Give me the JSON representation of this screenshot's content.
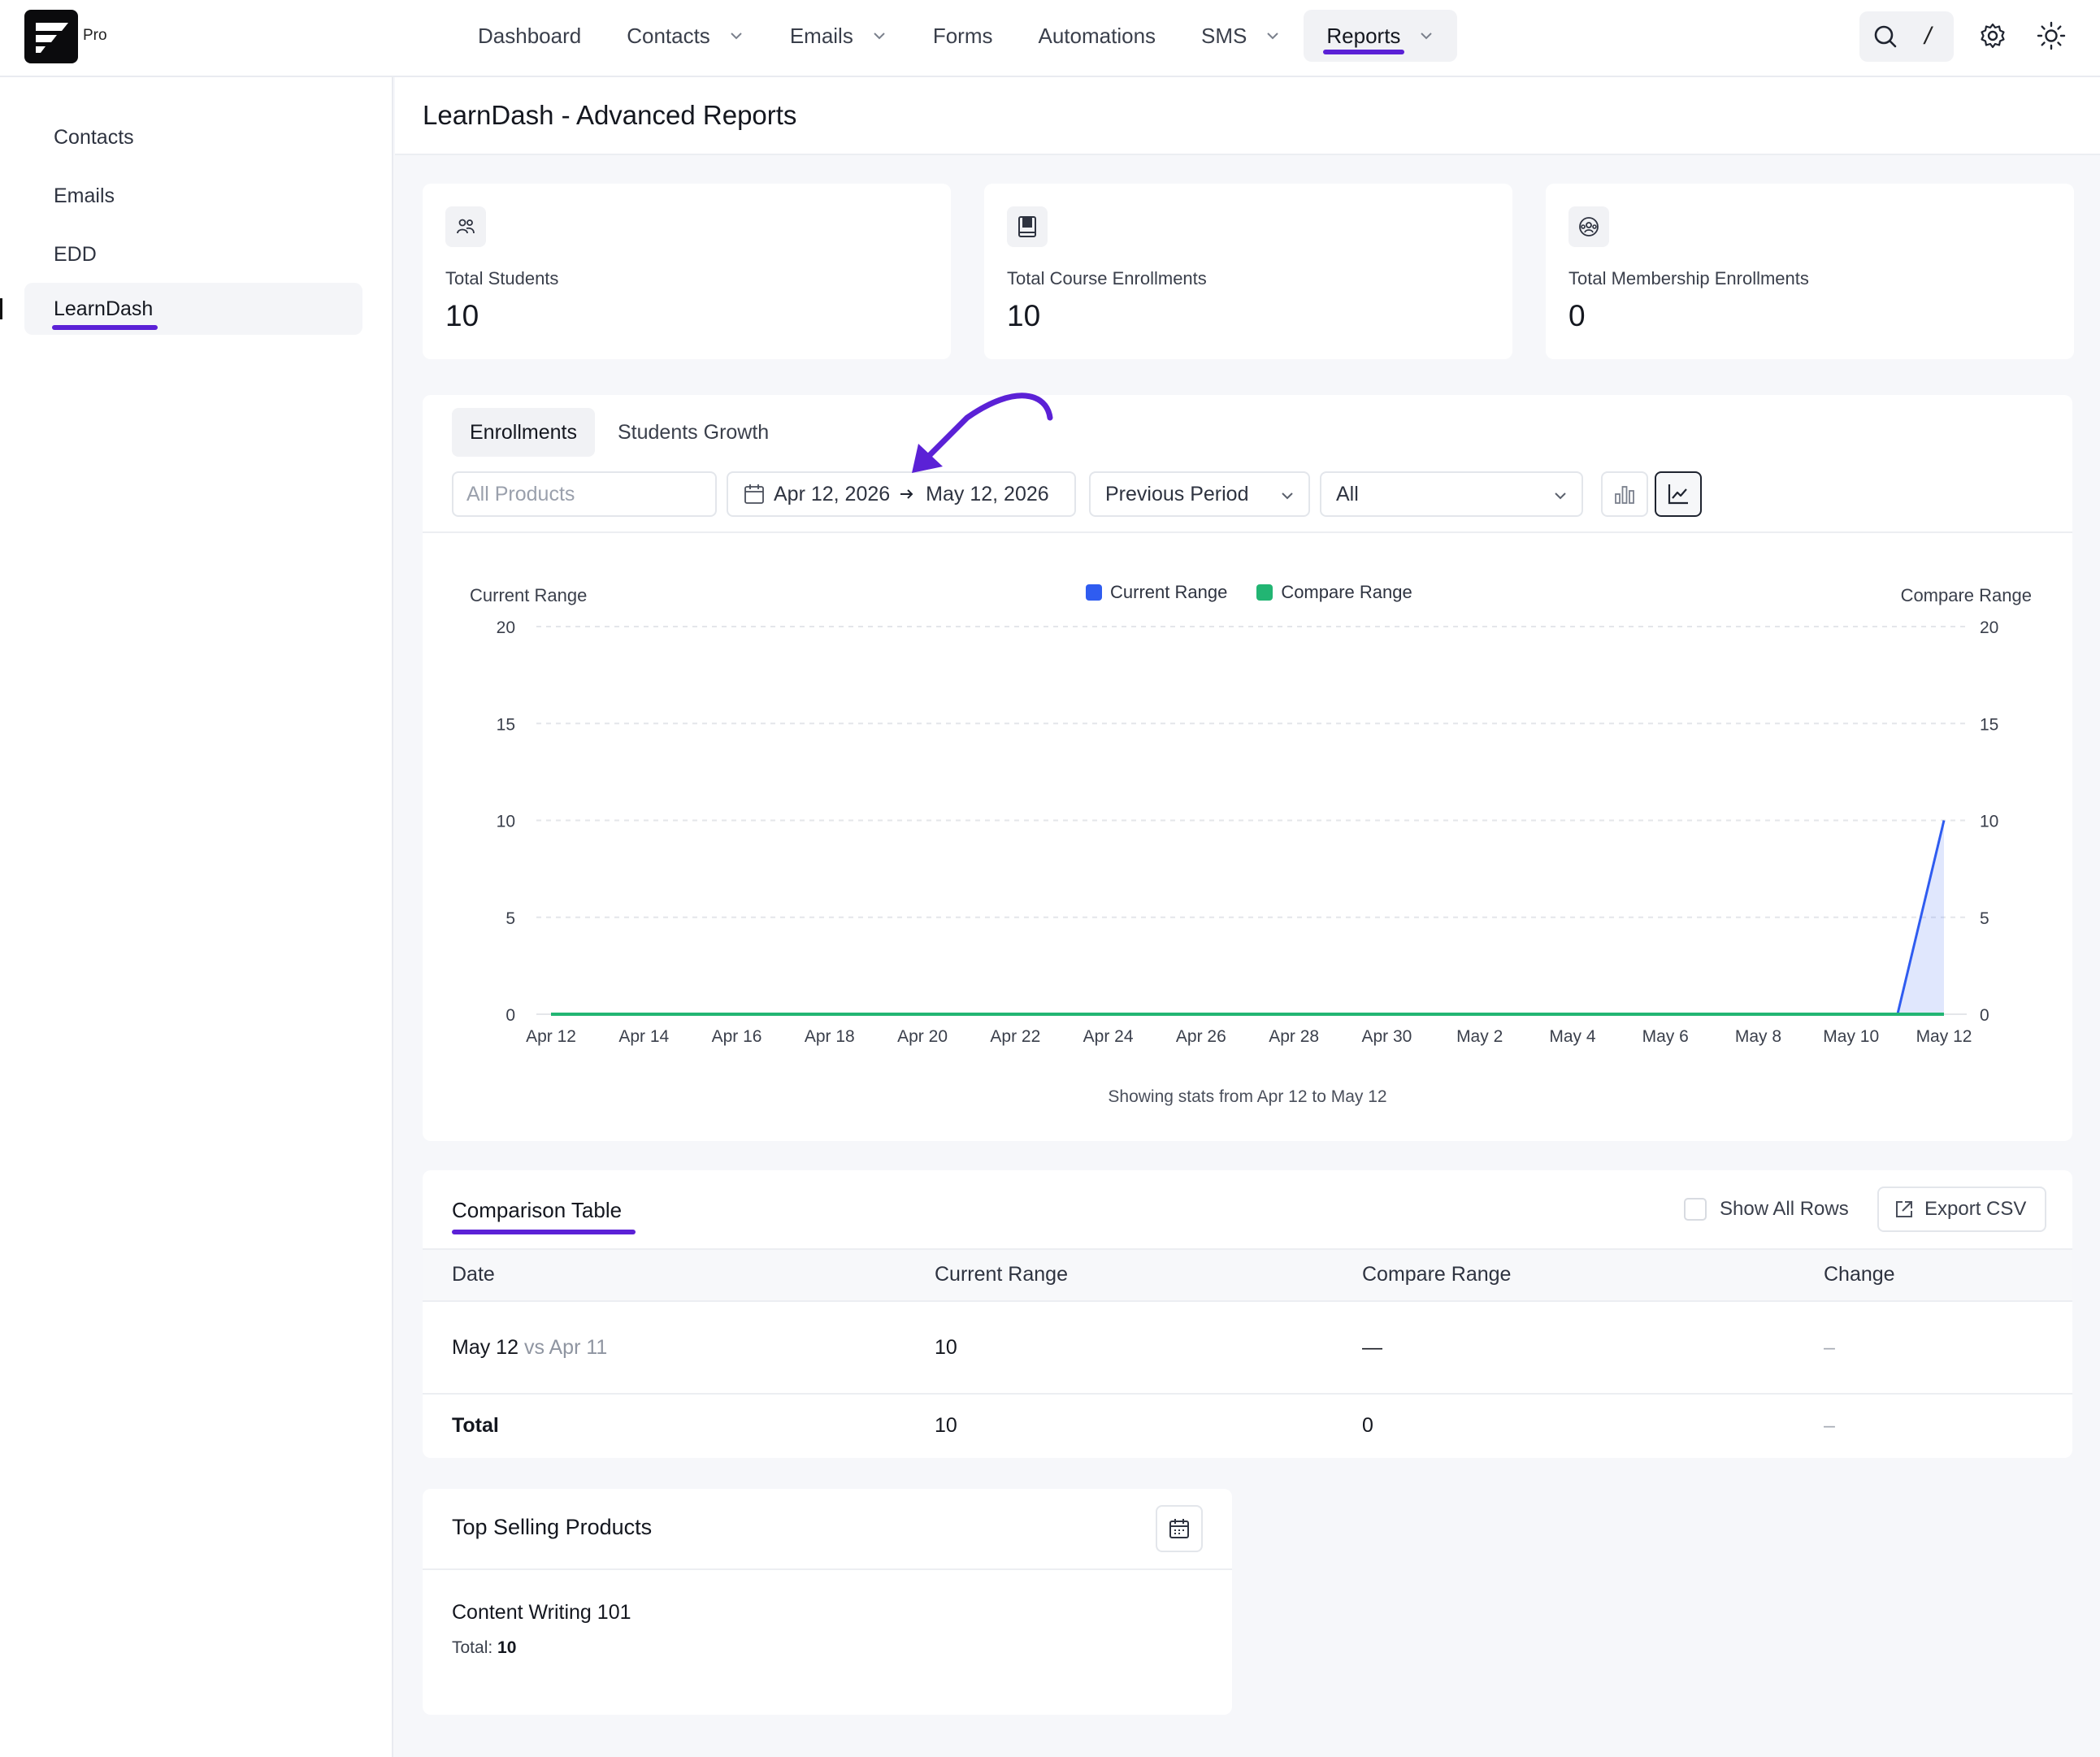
{
  "app": {
    "badge": "Pro"
  },
  "nav": {
    "items": [
      {
        "label": "Dashboard",
        "dropdown": false,
        "active": false
      },
      {
        "label": "Contacts",
        "dropdown": true,
        "active": false
      },
      {
        "label": "Emails",
        "dropdown": true,
        "active": false
      },
      {
        "label": "Forms",
        "dropdown": false,
        "active": false
      },
      {
        "label": "Automations",
        "dropdown": false,
        "active": false
      },
      {
        "label": "SMS",
        "dropdown": true,
        "active": false
      },
      {
        "label": "Reports",
        "dropdown": true,
        "active": true
      }
    ],
    "search_shortcut": "/"
  },
  "sidebar": {
    "items": [
      {
        "label": "Contacts",
        "active": false
      },
      {
        "label": "Emails",
        "active": false
      },
      {
        "label": "EDD",
        "active": false
      },
      {
        "label": "LearnDash",
        "active": true
      }
    ]
  },
  "page": {
    "title": "LearnDash - Advanced Reports"
  },
  "stats": [
    {
      "label": "Total Students",
      "value": "10",
      "icon": "users-icon"
    },
    {
      "label": "Total Course Enrollments",
      "value": "10",
      "icon": "book-icon"
    },
    {
      "label": "Total Membership Enrollments",
      "value": "0",
      "icon": "membership-icon"
    }
  ],
  "report": {
    "tabs": [
      {
        "label": "Enrollments",
        "active": true
      },
      {
        "label": "Students Growth",
        "active": false
      }
    ],
    "filters": {
      "products_placeholder": "All Products",
      "date_start": "Apr 12, 2026",
      "date_end": "May 12, 2026",
      "compare": "Previous Period",
      "scope": "All"
    },
    "chart_view": "line",
    "footnote": "Showing stats from Apr 12 to May 12"
  },
  "chart_data": {
    "type": "area",
    "title": "",
    "ylabel": "Current Range",
    "ylabel_right": "Compare Range",
    "ylim": [
      0,
      20
    ],
    "yticks": [
      0,
      5,
      10,
      15,
      20
    ],
    "legend_position": "top-center",
    "grid": true,
    "x_tick_labels": [
      "Apr 12",
      "Apr 14",
      "Apr 16",
      "Apr 18",
      "Apr 20",
      "Apr 22",
      "Apr 24",
      "Apr 26",
      "Apr 28",
      "Apr 30",
      "May 2",
      "May 4",
      "May 6",
      "May 8",
      "May 10",
      "May 12"
    ],
    "x": [
      "Apr 12",
      "Apr 13",
      "Apr 14",
      "Apr 15",
      "Apr 16",
      "Apr 17",
      "Apr 18",
      "Apr 19",
      "Apr 20",
      "Apr 21",
      "Apr 22",
      "Apr 23",
      "Apr 24",
      "Apr 25",
      "Apr 26",
      "Apr 27",
      "Apr 28",
      "Apr 29",
      "Apr 30",
      "May 1",
      "May 2",
      "May 3",
      "May 4",
      "May 5",
      "May 6",
      "May 7",
      "May 8",
      "May 9",
      "May 10",
      "May 11",
      "May 12"
    ],
    "series": [
      {
        "name": "Current Range",
        "color": "#2f5cf0",
        "values": [
          0,
          0,
          0,
          0,
          0,
          0,
          0,
          0,
          0,
          0,
          0,
          0,
          0,
          0,
          0,
          0,
          0,
          0,
          0,
          0,
          0,
          0,
          0,
          0,
          0,
          0,
          0,
          0,
          0,
          0,
          10
        ]
      },
      {
        "name": "Compare Range",
        "color": "#22b573",
        "values": [
          0,
          0,
          0,
          0,
          0,
          0,
          0,
          0,
          0,
          0,
          0,
          0,
          0,
          0,
          0,
          0,
          0,
          0,
          0,
          0,
          0,
          0,
          0,
          0,
          0,
          0,
          0,
          0,
          0,
          0,
          0
        ]
      }
    ]
  },
  "comparison": {
    "title": "Comparison Table",
    "show_all_label": "Show All Rows",
    "export_label": "Export CSV",
    "headers": [
      "Date",
      "Current Range",
      "Compare Range",
      "Change"
    ],
    "rows": [
      {
        "date": "May 12",
        "vs": "vs Apr 11",
        "current": "10",
        "compare": "—",
        "change": "–"
      }
    ],
    "total": {
      "label": "Total",
      "current": "10",
      "compare": "0",
      "change": "–"
    }
  },
  "top_products": {
    "title": "Top Selling Products",
    "items": [
      {
        "name": "Content Writing 101",
        "total_label": "Total:",
        "total": "10"
      }
    ]
  },
  "colors": {
    "accent": "#5b21d6",
    "current": "#2f5cf0",
    "compare": "#22b573"
  }
}
